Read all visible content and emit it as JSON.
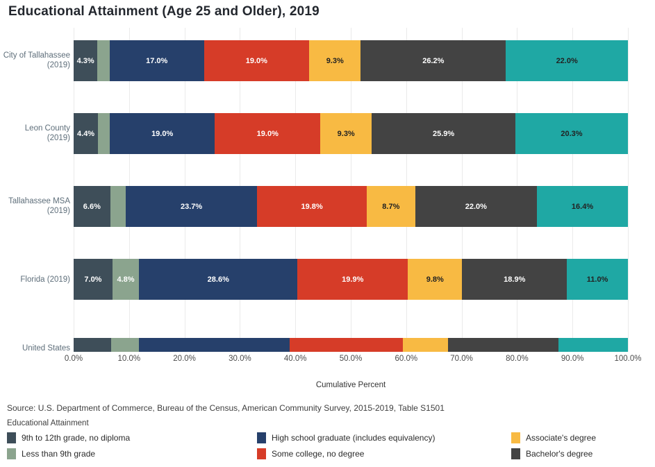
{
  "title": "Educational Attainment (Age 25 and Older), 2019",
  "axis": {
    "tick_labels": [
      "0.0%",
      "10.0%",
      "20.0%",
      "30.0%",
      "40.0%",
      "50.0%",
      "60.0%",
      "70.0%",
      "80.0%",
      "90.0%",
      "100.0%"
    ],
    "xlabel": "Cumulative Percent"
  },
  "source_text": "Source: U.S. Department of Commerce, Bureau of the Census, American Community Survey, 2015-2019, Table S1501",
  "legend": {
    "title": "Educational Attainment",
    "columns": [
      [
        {
          "label": "9th to 12th grade, no diploma",
          "color": "#3e4e59"
        },
        {
          "label": "Less than 9th grade",
          "color": "#8ba48e"
        }
      ],
      [
        {
          "label": "High school graduate (includes equivalency)",
          "color": "#26406b"
        },
        {
          "label": "Some college, no degree",
          "color": "#d63c28"
        }
      ],
      [
        {
          "label": "Associate's degree",
          "color": "#f8ba43"
        },
        {
          "label": "Bachelor's degree",
          "color": "#434343"
        }
      ]
    ]
  },
  "series_colors": [
    "#3e4e59",
    "#8ba48e",
    "#26406b",
    "#d63c28",
    "#f8ba43",
    "#434343",
    "#1fa8a4"
  ],
  "series_text_colors": [
    "#ffffff",
    "#ffffff",
    "#ffffff",
    "#ffffff",
    "#222222",
    "#ffffff",
    "#222222"
  ],
  "rows": [
    {
      "label_lines": [
        "City of Tallahassee",
        "(2019)"
      ],
      "segments": [
        {
          "v": 4.3,
          "t": "4.3%"
        },
        {
          "v": 2.2,
          "t": ""
        },
        {
          "v": 17.0,
          "t": "17.0%"
        },
        {
          "v": 19.0,
          "t": "19.0%"
        },
        {
          "v": 9.3,
          "t": "9.3%"
        },
        {
          "v": 26.2,
          "t": "26.2%"
        },
        {
          "v": 22.0,
          "t": "22.0%"
        }
      ]
    },
    {
      "label_lines": [
        "Leon County",
        "(2019)"
      ],
      "segments": [
        {
          "v": 4.4,
          "t": "4.4%"
        },
        {
          "v": 2.1,
          "t": ""
        },
        {
          "v": 19.0,
          "t": "19.0%"
        },
        {
          "v": 19.0,
          "t": "19.0%"
        },
        {
          "v": 9.3,
          "t": "9.3%"
        },
        {
          "v": 25.9,
          "t": "25.9%"
        },
        {
          "v": 20.3,
          "t": "20.3%"
        }
      ]
    },
    {
      "label_lines": [
        "Tallahassee MSA",
        "(2019)"
      ],
      "segments": [
        {
          "v": 6.6,
          "t": "6.6%"
        },
        {
          "v": 2.8,
          "t": ""
        },
        {
          "v": 23.7,
          "t": "23.7%"
        },
        {
          "v": 19.8,
          "t": "19.8%"
        },
        {
          "v": 8.7,
          "t": "8.7%"
        },
        {
          "v": 22.0,
          "t": "22.0%"
        },
        {
          "v": 16.4,
          "t": "16.4%"
        }
      ]
    },
    {
      "label_lines": [
        "Florida (2019)"
      ],
      "segments": [
        {
          "v": 7.0,
          "t": "7.0%"
        },
        {
          "v": 4.8,
          "t": "4.8%"
        },
        {
          "v": 28.6,
          "t": "28.6%"
        },
        {
          "v": 19.9,
          "t": "19.9%"
        },
        {
          "v": 9.8,
          "t": "9.8%"
        },
        {
          "v": 18.9,
          "t": "18.9%"
        },
        {
          "v": 11.0,
          "t": "11.0%"
        }
      ]
    },
    {
      "label_lines": [
        "United States"
      ],
      "segments": [
        {
          "v": 6.8,
          "t": ""
        },
        {
          "v": 5.0,
          "t": ""
        },
        {
          "v": 27.2,
          "t": ""
        },
        {
          "v": 20.4,
          "t": ""
        },
        {
          "v": 8.1,
          "t": ""
        },
        {
          "v": 20.0,
          "t": ""
        },
        {
          "v": 12.5,
          "t": ""
        }
      ]
    }
  ],
  "chart_data": {
    "type": "bar",
    "orientation": "horizontal-stacked",
    "title": "Educational Attainment (Age 25 and Older), 2019",
    "categories": [
      "City of Tallahassee (2019)",
      "Leon County (2019)",
      "Tallahassee MSA (2019)",
      "Florida (2019)",
      "United States"
    ],
    "series": [
      {
        "name": "9th to 12th grade, no diploma",
        "color": "#3e4e59",
        "values": [
          4.3,
          4.4,
          6.6,
          7.0,
          6.8
        ]
      },
      {
        "name": "Less than 9th grade",
        "color": "#8ba48e",
        "values": [
          2.2,
          2.1,
          2.8,
          4.8,
          5.0
        ]
      },
      {
        "name": "High school graduate (includes equivalency)",
        "color": "#26406b",
        "values": [
          17.0,
          19.0,
          23.7,
          28.6,
          27.2
        ]
      },
      {
        "name": "Some college, no degree",
        "color": "#d63c28",
        "values": [
          19.0,
          19.0,
          19.8,
          19.9,
          20.4
        ]
      },
      {
        "name": "Associate's degree",
        "color": "#f8ba43",
        "values": [
          9.3,
          9.3,
          8.7,
          9.8,
          8.1
        ]
      },
      {
        "name": "Bachelor's degree",
        "color": "#434343",
        "values": [
          26.2,
          25.9,
          22.0,
          18.9,
          20.0
        ]
      },
      {
        "name": "",
        "color": "#1fa8a4",
        "values": [
          22.0,
          20.3,
          16.4,
          11.0,
          12.5
        ]
      }
    ],
    "xlabel": "Cumulative Percent",
    "ylabel": "",
    "xlim": [
      0,
      100
    ],
    "grid": true,
    "legend_position": "bottom",
    "legend_title": "Educational Attainment"
  }
}
